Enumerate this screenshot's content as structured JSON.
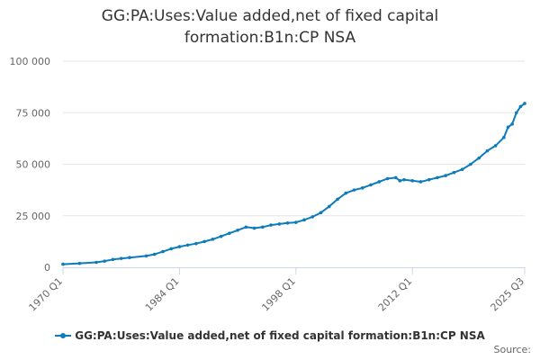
{
  "chart_data": {
    "type": "line",
    "title_lines": [
      "GG:PA:Uses:Value added,net of fixed capital",
      "formation:B1n:CP NSA"
    ],
    "x_tick_labels": [
      "1970 Q1",
      "1984 Q1",
      "1998 Q1",
      "2012 Q1",
      "2025 Q3"
    ],
    "ylim": [
      0,
      100000
    ],
    "y_ticks": [
      0,
      25000,
      50000,
      75000,
      100000
    ],
    "y_tick_labels": [
      "0",
      "25 000",
      "50 000",
      "75 000",
      "100 000"
    ],
    "grid": true,
    "legend_position": "bottom",
    "credits": "Source:",
    "series": [
      {
        "name": "GG:PA:Uses:Value added,net of fixed capital formation:B1n:CP NSA",
        "color": "#0e7cba",
        "points": [
          [
            "1970 Q1",
            1500
          ],
          [
            "1972 Q1",
            1900
          ],
          [
            "1974 Q1",
            2400
          ],
          [
            "1975 Q1",
            3000
          ],
          [
            "1976 Q1",
            3800
          ],
          [
            "1977 Q1",
            4300
          ],
          [
            "1978 Q1",
            4700
          ],
          [
            "1980 Q1",
            5500
          ],
          [
            "1981 Q1",
            6300
          ],
          [
            "1982 Q1",
            7600
          ],
          [
            "1983 Q1",
            9000
          ],
          [
            "1984 Q1",
            10000
          ],
          [
            "1985 Q1",
            10800
          ],
          [
            "1986 Q1",
            11500
          ],
          [
            "1987 Q1",
            12500
          ],
          [
            "1988 Q1",
            13600
          ],
          [
            "1989 Q1",
            15000
          ],
          [
            "1990 Q1",
            16500
          ],
          [
            "1991 Q1",
            18000
          ],
          [
            "1992 Q1",
            19500
          ],
          [
            "1993 Q1",
            19000
          ],
          [
            "1994 Q1",
            19500
          ],
          [
            "1995 Q1",
            20500
          ],
          [
            "1996 Q1",
            21000
          ],
          [
            "1997 Q1",
            21500
          ],
          [
            "1998 Q1",
            21800
          ],
          [
            "1999 Q1",
            23000
          ],
          [
            "2000 Q1",
            24500
          ],
          [
            "2001 Q1",
            26500
          ],
          [
            "2002 Q1",
            29500
          ],
          [
            "2003 Q1",
            33000
          ],
          [
            "2004 Q1",
            36000
          ],
          [
            "2005 Q1",
            37500
          ],
          [
            "2006 Q1",
            38500
          ],
          [
            "2007 Q1",
            40000
          ],
          [
            "2008 Q1",
            41500
          ],
          [
            "2009 Q1",
            43000
          ],
          [
            "2010 Q1",
            43500
          ],
          [
            "2010 Q3",
            42000
          ],
          [
            "2011 Q1",
            42500
          ],
          [
            "2012 Q1",
            42000
          ],
          [
            "2013 Q1",
            41500
          ],
          [
            "2014 Q1",
            42500
          ],
          [
            "2015 Q1",
            43500
          ],
          [
            "2016 Q1",
            44500
          ],
          [
            "2017 Q1",
            46000
          ],
          [
            "2018 Q1",
            47500
          ],
          [
            "2019 Q1",
            50000
          ],
          [
            "2020 Q1",
            53000
          ],
          [
            "2021 Q1",
            56500
          ],
          [
            "2022 Q1",
            59000
          ],
          [
            "2023 Q1",
            63000
          ],
          [
            "2023 Q3",
            68000
          ],
          [
            "2024 Q1",
            69500
          ],
          [
            "2024 Q3",
            75000
          ],
          [
            "2025 Q1",
            78000
          ],
          [
            "2025 Q3",
            79500
          ]
        ]
      }
    ]
  }
}
